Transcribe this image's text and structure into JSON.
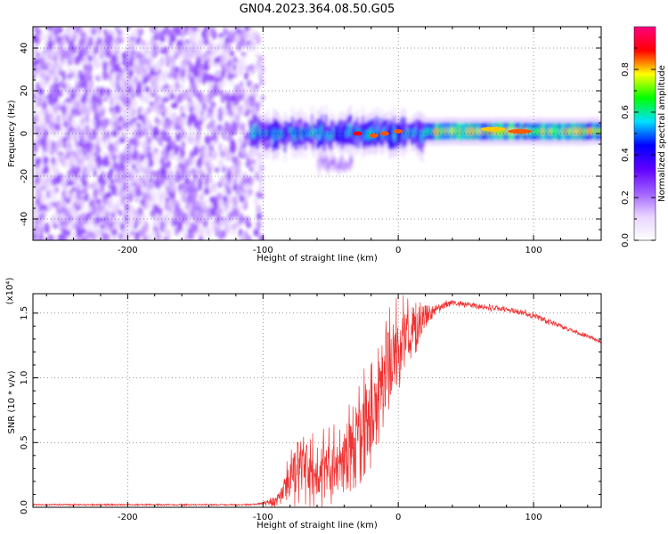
{
  "title": "GN04.2023.364.08.50.G05",
  "colors": {
    "snr_line": "#ee3333",
    "axis": "#000000",
    "grid": "#000000",
    "background": "#ffffff"
  },
  "colormap_stops": [
    "#ffffff",
    "#e8d4ff",
    "#a060ff",
    "#6000ff",
    "#0000ff",
    "#00e0ff",
    "#00ff00",
    "#ffff00",
    "#ff0000",
    "#ff0080"
  ],
  "chart_data": [
    {
      "type": "heatmap",
      "xlabel": "Height of straight line (km)",
      "ylabel": "Frequency (Hz)",
      "xlim": [
        -270,
        150
      ],
      "ylim": [
        -50,
        50
      ],
      "x_ticks": [
        -200,
        -100,
        0,
        100
      ],
      "y_ticks": [
        -40,
        -20,
        0,
        20,
        40
      ],
      "colorbar": {
        "label": "Normalized spectral amplitude",
        "range": [
          0,
          1
        ],
        "ticks": [
          "0.0",
          "0.2",
          "0.4",
          "0.6",
          "0.8"
        ]
      },
      "regions": [
        {
          "name": "diffuse noise",
          "x_range": [
            -270,
            -100
          ],
          "y_range": [
            -50,
            50
          ],
          "amplitude": 0.15
        },
        {
          "name": "signal band onset",
          "x_range": [
            -110,
            20
          ],
          "center_frequency": 0,
          "half_width": 5,
          "amplitude": 0.35
        },
        {
          "name": "stable carrier",
          "x_range": [
            20,
            150
          ],
          "center_frequency": 1,
          "half_width": 4,
          "amplitude": 0.5
        },
        {
          "name": "secondary trace",
          "x_range": [
            -60,
            -35
          ],
          "center_frequency": -14,
          "half_width": 2,
          "amplitude": 0.15
        }
      ],
      "peaks": [
        {
          "x": -30,
          "frequency": 0,
          "amplitude": 0.9
        },
        {
          "x": -18,
          "frequency": -1,
          "amplitude": 0.85
        },
        {
          "x": -10,
          "frequency": 0,
          "amplitude": 0.85
        },
        {
          "x": 0,
          "frequency": 1,
          "amplitude": 0.85
        },
        {
          "x": 70,
          "frequency": 2,
          "amplitude": 0.8
        },
        {
          "x": 90,
          "frequency": 1,
          "amplitude": 0.85
        }
      ]
    },
    {
      "type": "line",
      "xlabel": "Height of straight line (km)",
      "ylabel": "SNR (10 * v/v)",
      "scale_label": "(x10⁴)",
      "xlim": [
        -270,
        150
      ],
      "ylim": [
        0,
        1.65
      ],
      "x_ticks": [
        -200,
        -100,
        0,
        100
      ],
      "y_ticks": [
        "0.0",
        "0.5",
        "1.0",
        "1.5"
      ],
      "series": [
        {
          "x": [
            -270,
            -250,
            -200,
            -150,
            -110,
            -100,
            -90,
            -85,
            -80,
            -75,
            -70,
            -60,
            -50,
            -40,
            -30,
            -25,
            -20,
            -15,
            -10,
            -5,
            0,
            10,
            20,
            30,
            40,
            50,
            60,
            70,
            80,
            90,
            100,
            110,
            120,
            130,
            140,
            150
          ],
          "y": [
            0.02,
            0.02,
            0.02,
            0.02,
            0.02,
            0.03,
            0.05,
            0.1,
            0.2,
            0.3,
            0.35,
            0.3,
            0.3,
            0.35,
            0.5,
            0.6,
            0.75,
            0.85,
            1.0,
            1.1,
            1.2,
            1.35,
            1.48,
            1.55,
            1.58,
            1.57,
            1.55,
            1.54,
            1.53,
            1.51,
            1.48,
            1.44,
            1.4,
            1.36,
            1.32,
            1.28
          ],
          "noise_amplitude": [
            0,
            0,
            0,
            0,
            0,
            0.01,
            0.04,
            0.1,
            0.15,
            0.2,
            0.22,
            0.2,
            0.22,
            0.25,
            0.35,
            0.35,
            0.4,
            0.4,
            0.35,
            0.3,
            0.28,
            0.2,
            0.08,
            0.03,
            0.02,
            0.02,
            0.02,
            0.02,
            0.02,
            0.02,
            0.02,
            0.02,
            0.015,
            0.015,
            0.015,
            0.015
          ]
        }
      ]
    }
  ]
}
